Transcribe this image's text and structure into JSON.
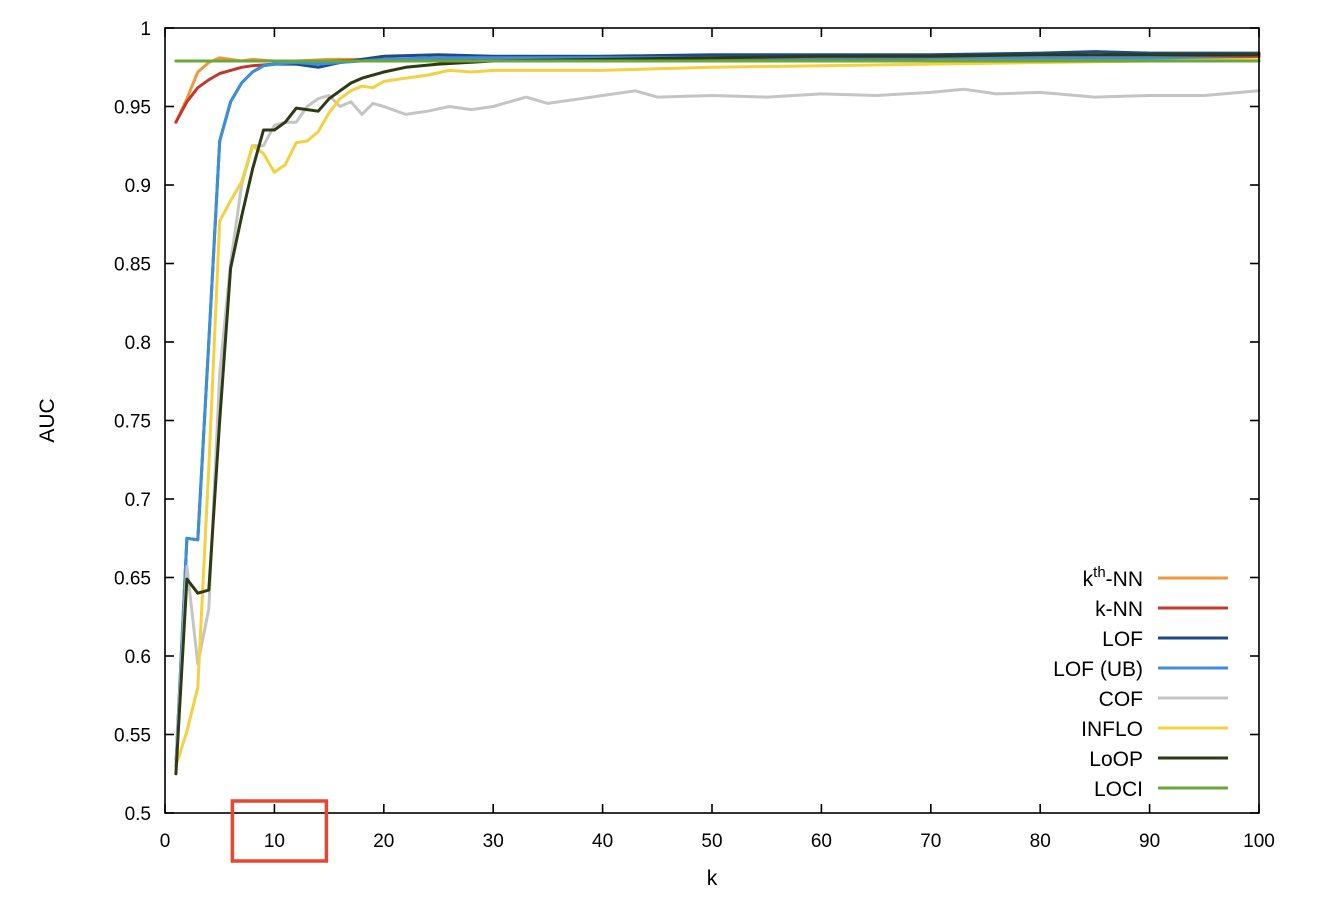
{
  "chart_data": {
    "type": "line",
    "xlabel": "k",
    "ylabel": "AUC",
    "xlim": [
      0,
      100
    ],
    "ylim": [
      0.5,
      1
    ],
    "x_ticks": [
      "0",
      "10",
      "20",
      "30",
      "40",
      "50",
      "60",
      "70",
      "80",
      "90",
      "100"
    ],
    "y_ticks": [
      "0.5",
      "0.55",
      "0.6",
      "0.65",
      "0.7",
      "0.75",
      "0.8",
      "0.85",
      "0.9",
      "0.95",
      "1"
    ],
    "grid": false,
    "legend_position": "bottom-right",
    "annotation": {
      "type": "highlight-box",
      "around_x_tick": "10",
      "color": "#e8462f"
    },
    "series": [
      {
        "name": "kth-NN",
        "label_base": "k",
        "label_sup": "th",
        "label_rest": "-NN",
        "color": "#ef9a3a",
        "x": [
          1,
          2,
          3,
          4,
          5,
          6,
          7,
          8,
          10,
          12,
          15,
          20,
          30,
          40,
          50,
          60,
          70,
          80,
          90,
          100
        ],
        "y": [
          0.94,
          0.955,
          0.972,
          0.978,
          0.981,
          0.98,
          0.979,
          0.98,
          0.979,
          0.979,
          0.98,
          0.98,
          0.98,
          0.98,
          0.98,
          0.98,
          0.981,
          0.981,
          0.981,
          0.981
        ]
      },
      {
        "name": "k-NN",
        "color": "#c0392b",
        "x": [
          1,
          2,
          3,
          4,
          5,
          6,
          7,
          8,
          10,
          12,
          15,
          20,
          30,
          40,
          50,
          60,
          70,
          80,
          90,
          100
        ],
        "y": [
          0.94,
          0.953,
          0.962,
          0.967,
          0.971,
          0.973,
          0.975,
          0.976,
          0.977,
          0.978,
          0.979,
          0.98,
          0.98,
          0.98,
          0.98,
          0.98,
          0.981,
          0.981,
          0.981,
          0.982
        ]
      },
      {
        "name": "LOF",
        "color": "#1e4a8a",
        "x": [
          1,
          2,
          3,
          4,
          5,
          6,
          7,
          8,
          9,
          10,
          12,
          14,
          16,
          20,
          25,
          30,
          40,
          50,
          60,
          70,
          80,
          85,
          90,
          100
        ],
        "y": [
          0.53,
          0.675,
          0.674,
          0.8,
          0.928,
          0.953,
          0.965,
          0.972,
          0.976,
          0.977,
          0.977,
          0.975,
          0.978,
          0.982,
          0.983,
          0.982,
          0.982,
          0.983,
          0.983,
          0.983,
          0.984,
          0.985,
          0.984,
          0.984
        ]
      },
      {
        "name": "LOF (UB)",
        "color": "#3d8fd6",
        "x": [
          1,
          2,
          3,
          4,
          5,
          6,
          7,
          8,
          9,
          10,
          12,
          14,
          16,
          20,
          25,
          30,
          40,
          50,
          60,
          70,
          80,
          90,
          100
        ],
        "y": [
          0.53,
          0.675,
          0.674,
          0.8,
          0.928,
          0.953,
          0.965,
          0.972,
          0.976,
          0.977,
          0.978,
          0.977,
          0.978,
          0.98,
          0.981,
          0.981,
          0.981,
          0.981,
          0.981,
          0.981,
          0.981,
          0.981,
          0.98
        ]
      },
      {
        "name": "COF",
        "color": "#c4c4c4",
        "x": [
          1,
          2,
          3,
          4,
          5,
          6,
          7,
          8,
          9,
          10,
          11,
          12,
          13,
          14,
          15,
          16,
          17,
          18,
          19,
          20,
          22,
          24,
          26,
          28,
          30,
          33,
          35,
          38,
          40,
          43,
          45,
          50,
          55,
          60,
          65,
          70,
          73,
          76,
          80,
          85,
          90,
          95,
          100
        ],
        "y": [
          0.53,
          0.657,
          0.595,
          0.63,
          0.78,
          0.85,
          0.9,
          0.925,
          0.925,
          0.938,
          0.94,
          0.94,
          0.95,
          0.955,
          0.957,
          0.95,
          0.953,
          0.945,
          0.952,
          0.95,
          0.945,
          0.947,
          0.95,
          0.948,
          0.95,
          0.956,
          0.952,
          0.955,
          0.957,
          0.96,
          0.956,
          0.957,
          0.956,
          0.958,
          0.957,
          0.959,
          0.961,
          0.958,
          0.959,
          0.956,
          0.957,
          0.957,
          0.96
        ]
      },
      {
        "name": "INFLO",
        "color": "#f5d040",
        "x": [
          1,
          2,
          3,
          4,
          5,
          6,
          7,
          8,
          9,
          10,
          11,
          12,
          13,
          14,
          15,
          16,
          17,
          18,
          19,
          20,
          22,
          24,
          26,
          28,
          30,
          35,
          40,
          45,
          50,
          60,
          70,
          80,
          90,
          100
        ],
        "y": [
          0.53,
          0.552,
          0.58,
          0.72,
          0.877,
          0.89,
          0.902,
          0.925,
          0.92,
          0.908,
          0.913,
          0.927,
          0.928,
          0.934,
          0.946,
          0.955,
          0.96,
          0.963,
          0.962,
          0.966,
          0.968,
          0.97,
          0.973,
          0.972,
          0.973,
          0.973,
          0.973,
          0.974,
          0.975,
          0.976,
          0.977,
          0.978,
          0.979,
          0.98
        ]
      },
      {
        "name": "LoOP",
        "color": "#2d3a14",
        "x": [
          1,
          2,
          3,
          4,
          5,
          6,
          7,
          8,
          9,
          10,
          11,
          12,
          13,
          14,
          15,
          16,
          17,
          18,
          19,
          20,
          22,
          25,
          30,
          40,
          50,
          60,
          70,
          80,
          90,
          100
        ],
        "y": [
          0.525,
          0.649,
          0.64,
          0.642,
          0.75,
          0.847,
          0.88,
          0.91,
          0.935,
          0.935,
          0.94,
          0.949,
          0.948,
          0.947,
          0.955,
          0.96,
          0.965,
          0.968,
          0.97,
          0.972,
          0.975,
          0.977,
          0.979,
          0.98,
          0.981,
          0.982,
          0.982,
          0.983,
          0.983,
          0.983
        ]
      },
      {
        "name": "LOCI",
        "color": "#6aa737",
        "x": [
          1,
          100
        ],
        "y": [
          0.979,
          0.979
        ]
      }
    ]
  }
}
